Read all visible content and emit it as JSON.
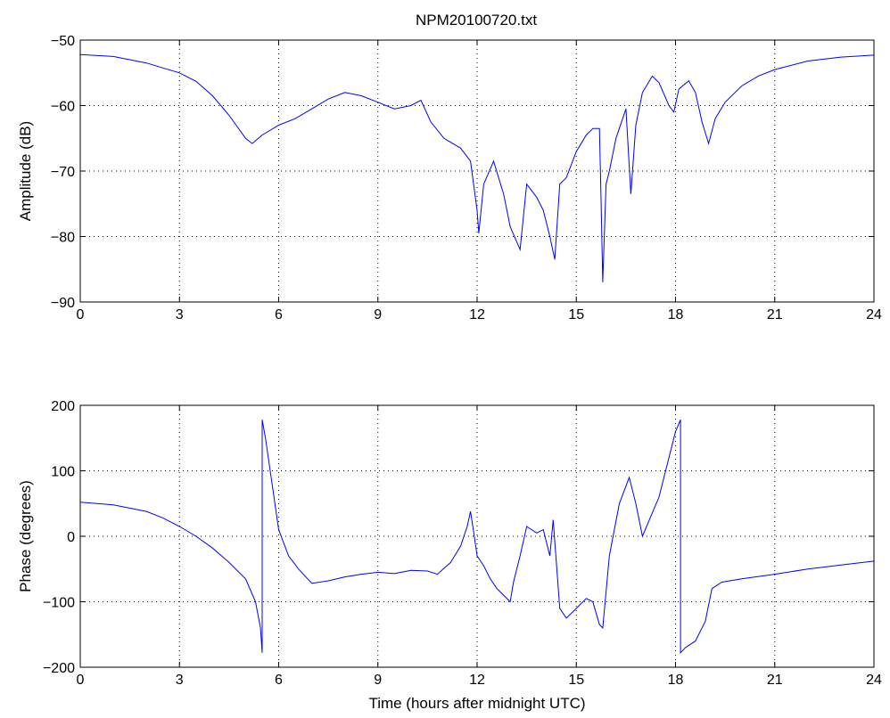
{
  "figure": {
    "title": "NPM20100720.txt"
  },
  "chart_data": [
    {
      "type": "line",
      "title": "NPM20100720.txt",
      "xlabel": "",
      "ylabel": "Amplitude (dB)",
      "xlim": [
        0,
        24
      ],
      "ylim": [
        -90,
        -50
      ],
      "xticks": [
        "0",
        "3",
        "6",
        "9",
        "12",
        "15",
        "18",
        "21",
        "24"
      ],
      "yticks": [
        "-90",
        "-80",
        "-70",
        "-60",
        "-50"
      ],
      "grid": true,
      "series": [
        {
          "color": "#0000ff",
          "x": [
            0,
            1,
            2,
            3,
            3.5,
            4,
            4.5,
            5,
            5.2,
            5.5,
            6,
            6.5,
            7,
            7.5,
            8,
            8.5,
            9,
            9.5,
            10,
            10.3,
            10.6,
            11,
            11.5,
            11.8,
            12.0,
            12.05,
            12.2,
            12.5,
            12.8,
            13,
            13.3,
            13.5,
            13.8,
            14,
            14.2,
            14.35,
            14.5,
            14.7,
            15,
            15.3,
            15.5,
            15.7,
            15.75,
            15.8,
            15.9,
            16.0,
            16.2,
            16.5,
            16.65,
            16.8,
            17.0,
            17.3,
            17.5,
            17.8,
            17.95,
            18.1,
            18.4,
            18.6,
            18.8,
            19.0,
            19.2,
            19.5,
            20,
            20.5,
            21,
            22,
            23,
            24
          ],
          "y": [
            -52.2,
            -52.5,
            -53.5,
            -55,
            -56.3,
            -58.5,
            -61.5,
            -65,
            -65.8,
            -64.5,
            -63,
            -62,
            -60.5,
            -59,
            -58,
            -58.5,
            -59.5,
            -60.5,
            -60,
            -59.2,
            -62.5,
            -65,
            -66.5,
            -68.5,
            -76,
            -79.5,
            -72,
            -68.5,
            -73.5,
            -78.5,
            -82,
            -72,
            -74,
            -76,
            -80,
            -83.5,
            -72,
            -71,
            -67,
            -64.5,
            -63.5,
            -63.5,
            -75,
            -87,
            -72,
            -70,
            -65,
            -60.5,
            -73.5,
            -63,
            -58,
            -55.5,
            -56.5,
            -60,
            -61,
            -57.5,
            -56.2,
            -58,
            -62.5,
            -65.8,
            -62,
            -59.5,
            -57,
            -55.5,
            -54.5,
            -53.2,
            -52.6,
            -52.3
          ]
        }
      ]
    },
    {
      "type": "line",
      "title": "",
      "xlabel": "Time (hours after midnight UTC)",
      "ylabel": "Phase (degrees)",
      "xlim": [
        0,
        24
      ],
      "ylim": [
        -200,
        200
      ],
      "xticks": [
        "0",
        "3",
        "6",
        "9",
        "12",
        "15",
        "18",
        "21",
        "24"
      ],
      "yticks": [
        "-200",
        "-100",
        "0",
        "100",
        "200"
      ],
      "grid": true,
      "series": [
        {
          "color": "#0000ff",
          "x": [
            0,
            1,
            2,
            2.5,
            3,
            3.5,
            4,
            4.5,
            5,
            5.3,
            5.45,
            5.5,
            5.5,
            5.6,
            5.8,
            6.0,
            6.3,
            6.6,
            7.0,
            7.5,
            8,
            8.5,
            9,
            9.5,
            10,
            10.5,
            10.8,
            11.2,
            11.5,
            11.7,
            11.8,
            11.9,
            12.0,
            12.2,
            12.4,
            12.6,
            12.8,
            13.0,
            13.1,
            13.3,
            13.5,
            13.8,
            14.0,
            14.2,
            14.3,
            14.5,
            14.7,
            15.0,
            15.3,
            15.5,
            15.7,
            15.8,
            16.0,
            16.3,
            16.6,
            16.8,
            17.0,
            17.5,
            18.0,
            18.15,
            18.15,
            18.3,
            18.6,
            18.9,
            19.1,
            19.4,
            20,
            21,
            22,
            23,
            24
          ],
          "y": [
            52,
            48,
            38,
            28,
            15,
            0,
            -18,
            -40,
            -65,
            -100,
            -140,
            -178,
            178,
            150,
            80,
            10,
            -30,
            -50,
            -72,
            -68,
            -62,
            -58,
            -55,
            -57,
            -52,
            -53,
            -58,
            -40,
            -15,
            15,
            38,
            5,
            -30,
            -45,
            -65,
            -80,
            -90,
            -100,
            -70,
            -30,
            15,
            5,
            10,
            -30,
            25,
            -110,
            -125,
            -110,
            -95,
            -100,
            -135,
            -140,
            -30,
            50,
            90,
            50,
            0,
            60,
            160,
            178,
            -178,
            -170,
            -160,
            -130,
            -80,
            -70,
            -65,
            -58,
            -50,
            -44,
            -38
          ]
        }
      ]
    }
  ]
}
